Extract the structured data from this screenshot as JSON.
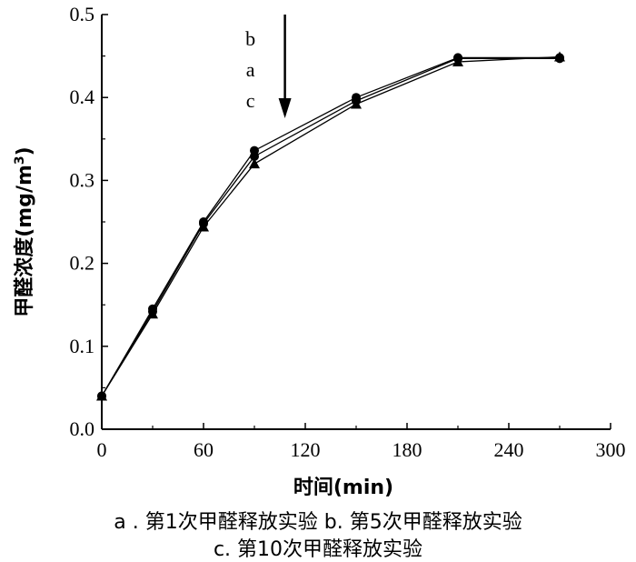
{
  "chart_data": {
    "type": "line",
    "title": "",
    "xlabel": "时间(min)",
    "ylabel_main": "甲醛浓度(mg/m",
    "ylabel_sup": "3",
    "ylabel_close": ")",
    "xlim": [
      0,
      300
    ],
    "ylim": [
      0.0,
      0.5
    ],
    "xticks": [
      0,
      60,
      120,
      180,
      240,
      300
    ],
    "xtick_labels": [
      "0",
      "60",
      "120",
      "180",
      "240",
      "300"
    ],
    "yticks": [
      0.0,
      0.1,
      0.2,
      0.3,
      0.4,
      0.5
    ],
    "ytick_labels": [
      "0.0",
      "0.1",
      "0.2",
      "0.3",
      "0.4",
      "0.5"
    ],
    "grid": false,
    "x": [
      0,
      30,
      60,
      90,
      150,
      210,
      270
    ],
    "series": [
      {
        "name": "a",
        "marker": "circle",
        "values": [
          0.04,
          0.142,
          0.248,
          0.329,
          0.396,
          0.447,
          0.447
        ]
      },
      {
        "name": "b",
        "marker": "circle",
        "values": [
          0.04,
          0.145,
          0.25,
          0.336,
          0.4,
          0.448,
          0.448
        ]
      },
      {
        "name": "c",
        "marker": "triangle",
        "values": [
          0.04,
          0.139,
          0.244,
          0.32,
          0.392,
          0.443,
          0.449
        ]
      }
    ],
    "annotation": {
      "labels": [
        "b",
        "a",
        "c"
      ],
      "arrow_x": 108,
      "arrow_from_y": 0.5,
      "arrow_to_y": 0.375
    },
    "caption": {
      "line1": "a . 第1次甲醛释放实验  b. 第5次甲醛释放实验",
      "line2": "c. 第10次甲醛释放实验"
    }
  }
}
